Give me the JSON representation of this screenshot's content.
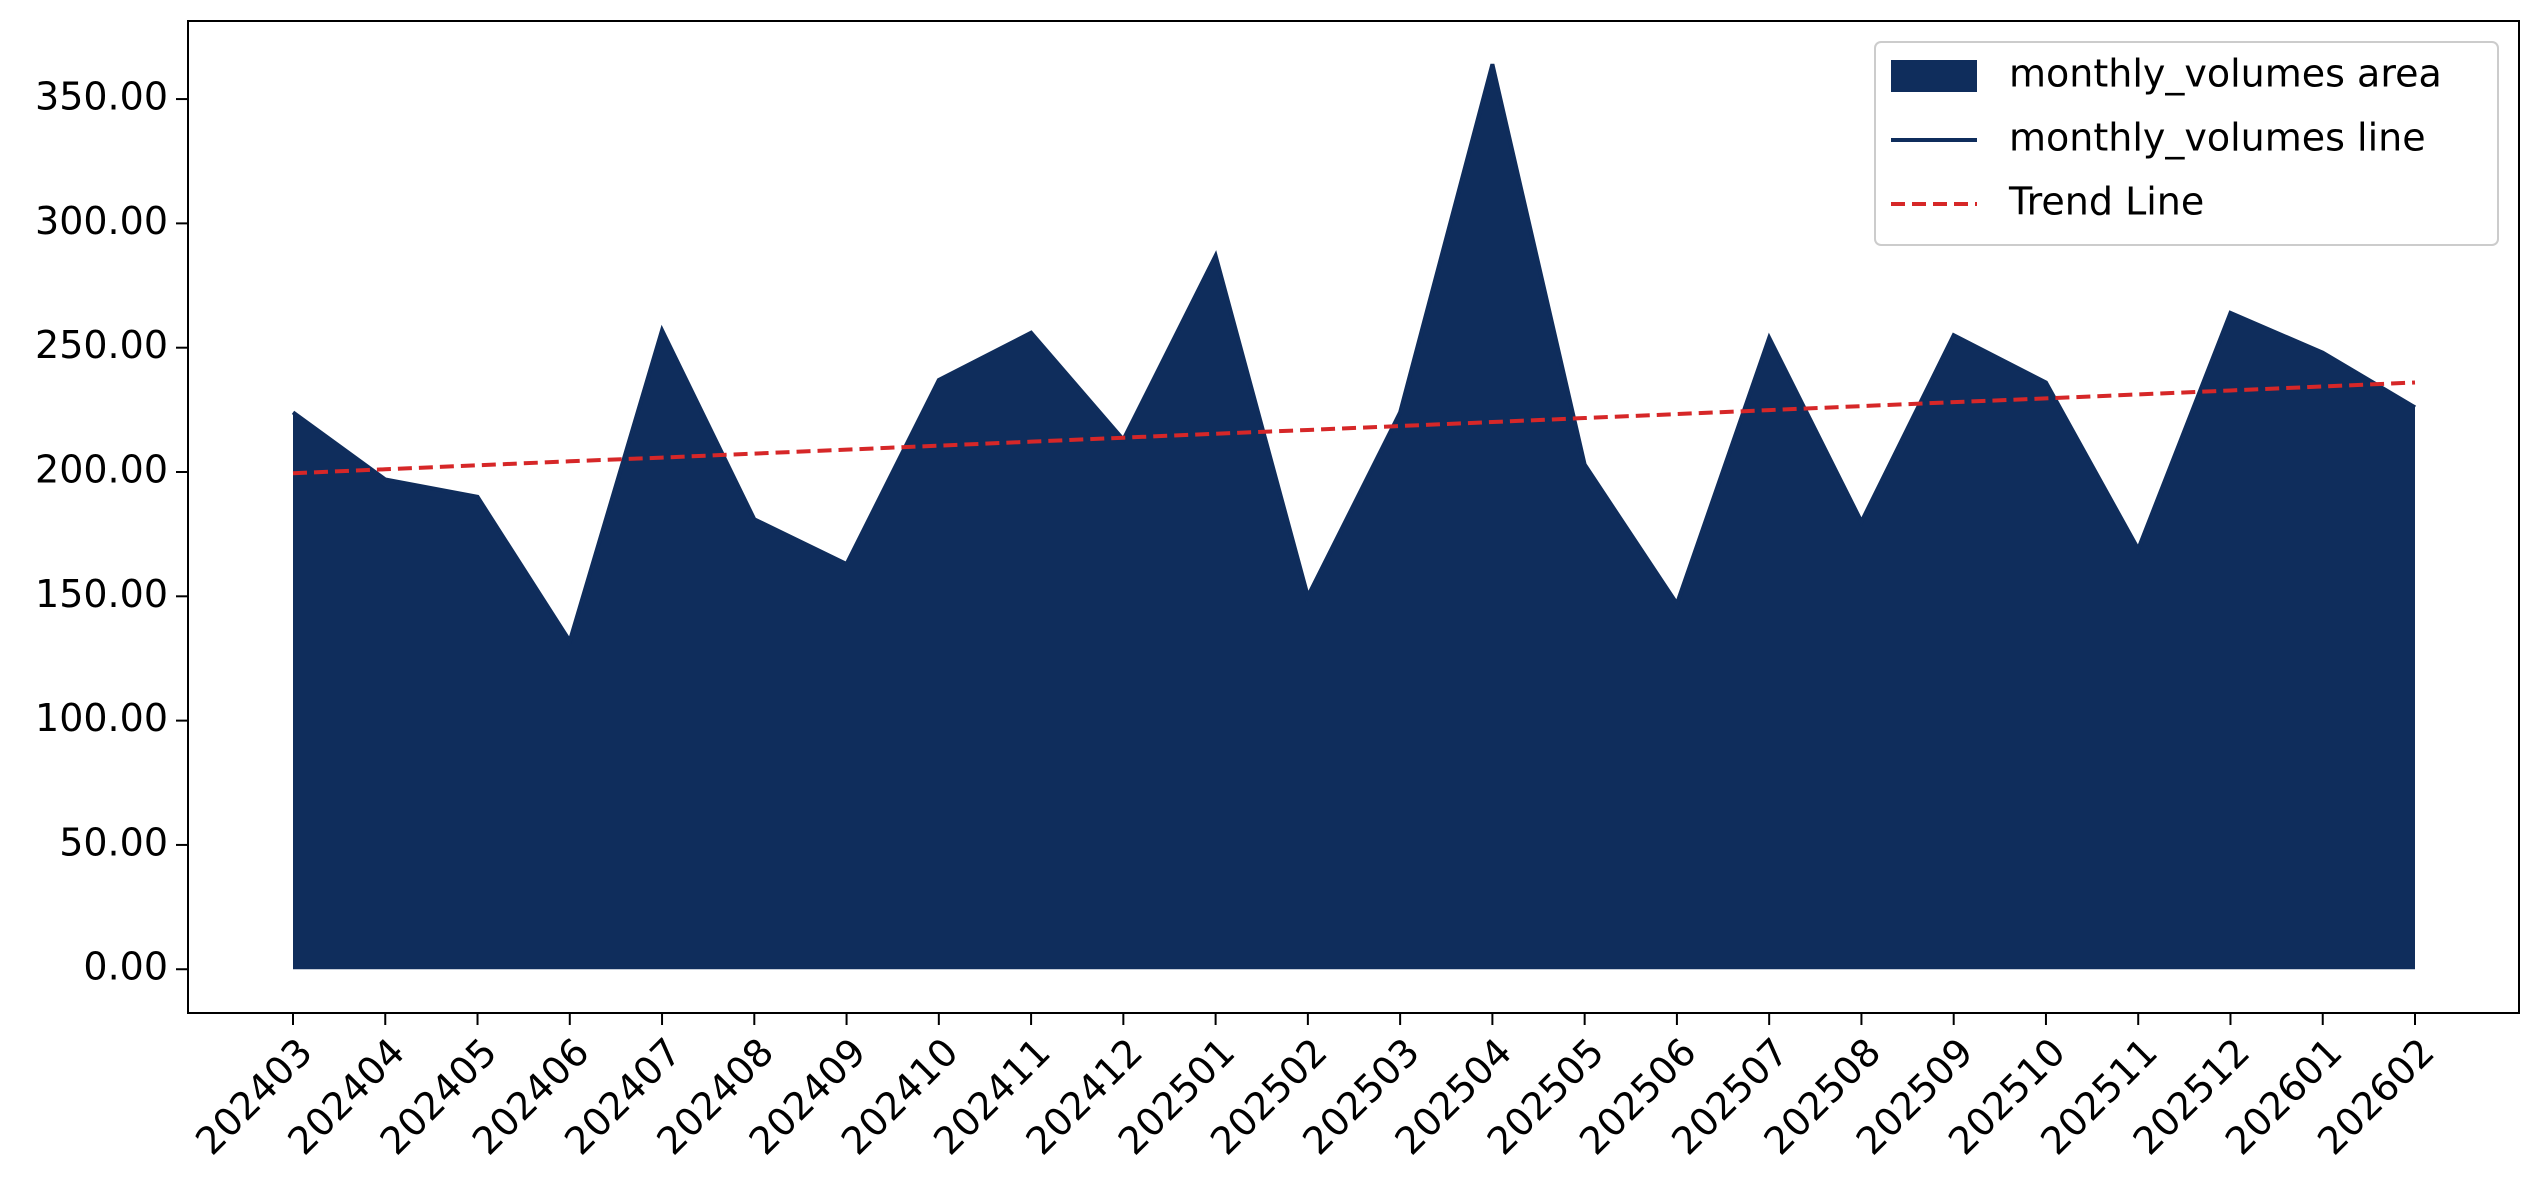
{
  "chart_data": {
    "type": "area",
    "categories": [
      "202403",
      "202404",
      "202405",
      "202406",
      "202407",
      "202408",
      "202409",
      "202410",
      "202411",
      "202412",
      "202501",
      "202502",
      "202503",
      "202504",
      "202505",
      "202506",
      "202507",
      "202508",
      "202509",
      "202510",
      "202511",
      "202512",
      "202601",
      "202602"
    ],
    "series": [
      {
        "name": "monthly_volumes area",
        "color": "#0f2d5c",
        "style": "area",
        "values": [
          224,
          197,
          190,
          132,
          257,
          181,
          163,
          237,
          256,
          213,
          287,
          150,
          224,
          364,
          203,
          147,
          254,
          180,
          255,
          236,
          169,
          264,
          248,
          226
        ]
      },
      {
        "name": "monthly_volumes line",
        "color": "#0f2d5c",
        "style": "solid",
        "values": [
          224,
          197,
          190,
          132,
          257,
          181,
          163,
          237,
          256,
          213,
          287,
          150,
          224,
          364,
          203,
          147,
          254,
          180,
          255,
          236,
          169,
          264,
          248,
          226
        ]
      },
      {
        "name": "Trend Line",
        "color": "#d62728",
        "style": "dashed",
        "values": [
          199.5,
          201.1,
          202.7,
          204.3,
          205.8,
          207.4,
          209.0,
          210.6,
          212.2,
          213.8,
          215.4,
          216.9,
          218.5,
          220.1,
          221.7,
          223.3,
          224.9,
          226.5,
          228.1,
          229.6,
          231.2,
          232.8,
          234.4,
          236.0
        ]
      }
    ],
    "ylim": [
      -17.6,
      381.4
    ],
    "yticks": [
      {
        "value": 0,
        "label": "0.00"
      },
      {
        "value": 50,
        "label": "50.00"
      },
      {
        "value": 100,
        "label": "100.00"
      },
      {
        "value": 150,
        "label": "150.00"
      },
      {
        "value": 200,
        "label": "200.00"
      },
      {
        "value": 250,
        "label": "250.00"
      },
      {
        "value": 300,
        "label": "300.00"
      },
      {
        "value": 350,
        "label": "350.00"
      }
    ],
    "legend": "upper right"
  }
}
